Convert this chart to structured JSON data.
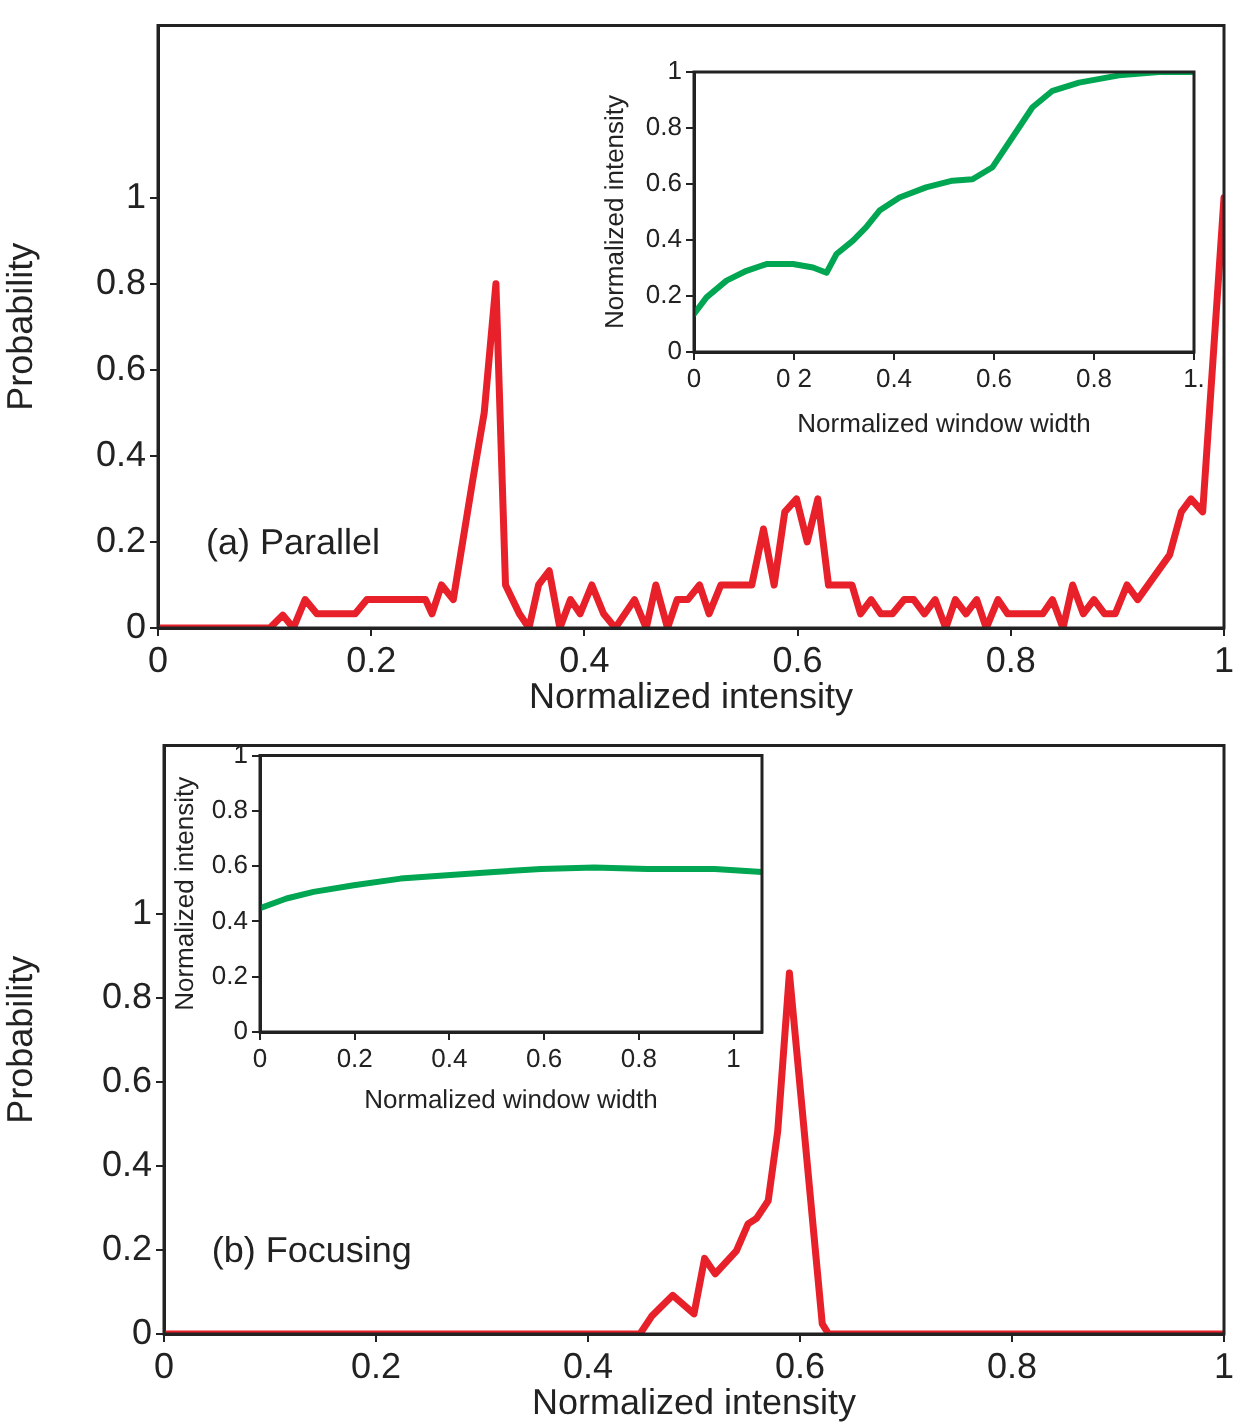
{
  "chart_data": [
    {
      "type": "line",
      "xlabel": "Normalized intensity",
      "ylabel": "Probability",
      "annotations": [
        "(a) Parallel"
      ],
      "color": "#e8202a",
      "xlim": [
        0,
        1
      ],
      "ylim": [
        0,
        1.4
      ],
      "xticks": [
        0,
        0.2,
        0.4,
        0.6,
        0.8,
        1
      ],
      "yticks": [
        0,
        0.2,
        0.4,
        0.6,
        0.8,
        1
      ],
      "x": [
        0,
        0.105,
        0.117,
        0.127,
        0.138,
        0.149,
        0.185,
        0.196,
        0.251,
        0.257,
        0.266,
        0.277,
        0.295,
        0.306,
        0.317,
        0.326,
        0.339,
        0.348,
        0.357,
        0.367,
        0.377,
        0.387,
        0.396,
        0.407,
        0.418,
        0.429,
        0.447,
        0.458,
        0.467,
        0.478,
        0.487,
        0.497,
        0.508,
        0.517,
        0.528,
        0.557,
        0.568,
        0.578,
        0.588,
        0.599,
        0.609,
        0.619,
        0.629,
        0.651,
        0.659,
        0.669,
        0.678,
        0.689,
        0.7,
        0.709,
        0.719,
        0.729,
        0.739,
        0.748,
        0.758,
        0.768,
        0.777,
        0.788,
        0.797,
        0.83,
        0.839,
        0.849,
        0.858,
        0.868,
        0.878,
        0.888,
        0.898,
        0.909,
        0.919,
        0.949,
        0.96,
        0.969,
        0.98,
        1
      ],
      "values": [
        0,
        0,
        0.03,
        0,
        0.066,
        0.033,
        0.033,
        0.066,
        0.066,
        0.033,
        0.1,
        0.066,
        0.34,
        0.5,
        0.8,
        0.1,
        0.033,
        0,
        0.1,
        0.133,
        0,
        0.066,
        0.033,
        0.1,
        0.033,
        0,
        0.066,
        0,
        0.1,
        0,
        0.066,
        0.066,
        0.1,
        0.033,
        0.1,
        0.1,
        0.23,
        0.1,
        0.27,
        0.3,
        0.2,
        0.3,
        0.1,
        0.1,
        0.033,
        0.066,
        0.033,
        0.033,
        0.066,
        0.066,
        0.033,
        0.066,
        0,
        0.066,
        0.033,
        0.066,
        0,
        0.066,
        0.033,
        0.033,
        0.066,
        0,
        0.1,
        0.033,
        0.066,
        0.033,
        0.033,
        0.1,
        0.066,
        0.17,
        0.27,
        0.3,
        0.27,
        1
      ]
    },
    {
      "type": "line",
      "xlabel": "Normalized window width",
      "ylabel": "Normalized intensity",
      "color": "#00a651",
      "xlim": [
        0,
        1
      ],
      "ylim": [
        0,
        1
      ],
      "xticks": [
        0,
        {
          "value": 0.2,
          "label": "0 2"
        },
        0.4,
        0.6,
        0.8,
        {
          "value": 1,
          "label": "1."
        }
      ],
      "yticks": [
        0,
        0.2,
        0.4,
        0.6,
        0.8,
        1
      ],
      "x": [
        0,
        0.025,
        0.065,
        0.105,
        0.145,
        0.198,
        0.238,
        0.265,
        0.285,
        0.318,
        0.344,
        0.371,
        0.411,
        0.464,
        0.517,
        0.557,
        0.597,
        0.637,
        0.677,
        0.717,
        0.77,
        0.85,
        0.93,
        1
      ],
      "values": [
        0.136,
        0.195,
        0.255,
        0.29,
        0.314,
        0.314,
        0.302,
        0.283,
        0.35,
        0.398,
        0.445,
        0.505,
        0.552,
        0.588,
        0.612,
        0.617,
        0.66,
        0.767,
        0.874,
        0.933,
        0.962,
        0.988,
        1,
        1
      ]
    },
    {
      "type": "line",
      "xlabel": "Normalized intensity",
      "ylabel": "Probability",
      "annotations": [
        "(b) Focusing"
      ],
      "color": "#e8202a",
      "xlim": [
        0,
        1
      ],
      "ylim": [
        0,
        1.4
      ],
      "xticks": [
        0,
        0.2,
        0.4,
        0.6,
        0.8,
        1
      ],
      "yticks": [
        0,
        0.2,
        0.4,
        0.6,
        0.8,
        1
      ],
      "x": [
        0,
        0.449,
        0.46,
        0.48,
        0.5,
        0.51,
        0.52,
        0.54,
        0.551,
        0.559,
        0.57,
        0.579,
        0.59,
        0.621,
        0.627,
        1
      ],
      "values": [
        0,
        0,
        0.042,
        0.092,
        0.048,
        0.18,
        0.143,
        0.198,
        0.262,
        0.275,
        0.317,
        0.483,
        0.859,
        0.024,
        0,
        0
      ]
    },
    {
      "type": "line",
      "xlabel": "Normalized window width",
      "ylabel": "Normalized intensity",
      "color": "#00a651",
      "xlim": [
        0,
        1.06
      ],
      "ylim": [
        0,
        1
      ],
      "xticks": [
        0,
        0.2,
        0.4,
        0.6,
        0.8,
        1
      ],
      "yticks": [
        0,
        0.2,
        0.4,
        0.6,
        0.8,
        1
      ],
      "x": [
        0,
        0.056,
        0.113,
        0.198,
        0.297,
        0.395,
        0.494,
        0.593,
        0.706,
        0.819,
        0.96,
        1.06
      ],
      "values": [
        0.448,
        0.483,
        0.507,
        0.531,
        0.555,
        0.567,
        0.579,
        0.59,
        0.595,
        0.59,
        0.59,
        0.579
      ]
    }
  ]
}
